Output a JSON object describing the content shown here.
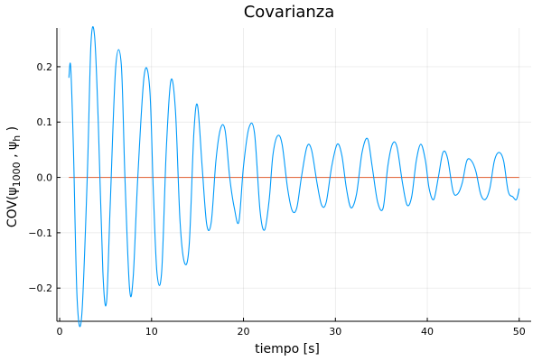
{
  "chart_data": {
    "type": "line",
    "title": "Covarianza",
    "xlabel": "tiempo [s]",
    "ylabel": {
      "prefix": "COV(ψ",
      "sub1": "1000",
      "mid": " , ψ",
      "sub2": "h",
      "suffix": " )"
    },
    "xlim": [
      -0.3,
      51.3
    ],
    "ylim": [
      -0.26,
      0.27
    ],
    "xticks": [
      0,
      10,
      20,
      30,
      40,
      50
    ],
    "yticks": [
      -0.2,
      -0.1,
      0.0,
      0.1,
      0.2
    ],
    "xtick_labels": [
      "0",
      "10",
      "20",
      "30",
      "40",
      "50"
    ],
    "ytick_labels": [
      "−0.2",
      "−0.1",
      "0.0",
      "0.1",
      "0.2"
    ],
    "grid": true,
    "legend": "none",
    "series": [
      {
        "color": "#009AFA",
        "x": [
          1.0,
          1.2,
          1.5,
          1.9,
          2.4,
          3.0,
          3.4,
          3.8,
          4.2,
          4.7,
          5.1,
          5.5,
          6.1,
          6.7,
          7.1,
          7.6,
          8.0,
          8.5,
          9.2,
          9.8,
          10.2,
          10.6,
          11.1,
          11.6,
          12.1,
          12.6,
          13.1,
          13.6,
          14.1,
          14.6,
          15.0,
          15.5,
          16.0,
          16.5,
          17.0,
          17.5,
          18.0,
          18.5,
          19.0,
          19.5,
          20.0,
          20.6,
          21.2,
          21.8,
          22.3,
          22.8,
          23.2,
          23.7,
          24.2,
          24.8,
          25.3,
          25.8,
          26.3,
          26.9,
          27.4,
          28.0,
          28.5,
          29.0,
          29.6,
          30.2,
          30.7,
          31.2,
          31.7,
          32.3,
          32.9,
          33.5,
          34.0,
          34.6,
          35.2,
          35.7,
          36.2,
          36.7,
          37.3,
          37.8,
          38.3,
          38.8,
          39.3,
          39.8,
          40.2,
          40.7,
          41.2,
          41.7,
          42.2,
          42.8,
          43.3,
          43.8,
          44.3,
          44.8,
          45.3,
          45.8,
          46.3,
          46.8,
          47.3,
          47.8,
          48.3,
          48.8,
          49.3,
          49.7,
          50.0
        ],
        "y": [
          0.18,
          0.2,
          0.05,
          -0.22,
          -0.25,
          0.0,
          0.24,
          0.255,
          0.1,
          -0.17,
          -0.225,
          -0.05,
          0.2,
          0.205,
          0.0,
          -0.2,
          -0.18,
          0.0,
          0.185,
          0.16,
          -0.03,
          -0.175,
          -0.17,
          0.05,
          0.175,
          0.12,
          -0.08,
          -0.155,
          -0.12,
          0.08,
          0.13,
          0.02,
          -0.085,
          -0.08,
          0.03,
          0.088,
          0.085,
          0.0,
          -0.055,
          -0.08,
          0.02,
          0.09,
          0.08,
          -0.06,
          -0.095,
          -0.04,
          0.04,
          0.075,
          0.06,
          -0.02,
          -0.06,
          -0.055,
          0.0,
          0.055,
          0.05,
          -0.01,
          -0.05,
          -0.045,
          0.02,
          0.06,
          0.04,
          -0.02,
          -0.055,
          -0.03,
          0.045,
          0.07,
          0.02,
          -0.045,
          -0.055,
          0.02,
          0.06,
          0.055,
          -0.01,
          -0.05,
          -0.035,
          0.03,
          0.06,
          0.03,
          -0.02,
          -0.04,
          0.0,
          0.045,
          0.035,
          -0.025,
          -0.03,
          -0.01,
          0.03,
          0.03,
          0.01,
          -0.03,
          -0.04,
          -0.02,
          0.03,
          0.045,
          0.03,
          -0.025,
          -0.035,
          -0.04,
          -0.02
        ]
      },
      {
        "color": "#E26F46",
        "x": [
          1.0,
          50.0
        ],
        "y": [
          0.0,
          0.0
        ]
      }
    ]
  }
}
